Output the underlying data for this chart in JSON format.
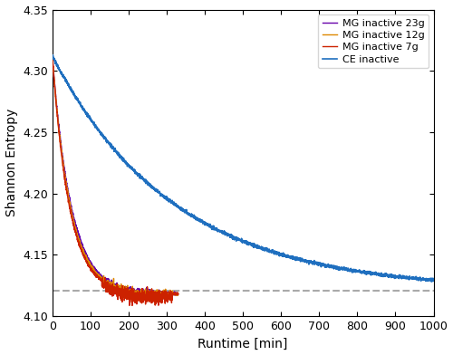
{
  "title": "",
  "xlabel": "Runtime [min]",
  "ylabel": "Shannon Entropy",
  "xlim": [
    0,
    1000
  ],
  "ylim": [
    4.1,
    4.35
  ],
  "yticks": [
    4.1,
    4.15,
    4.2,
    4.25,
    4.3,
    4.35
  ],
  "xticks": [
    0,
    100,
    200,
    300,
    400,
    500,
    600,
    700,
    800,
    900,
    1000
  ],
  "dashed_line_y": 4.121,
  "legend": [
    "CE inactive",
    "MG inactive 7g",
    "MG inactive 12g",
    "MG inactive 23g"
  ],
  "colors": {
    "CE": "#1f6fbf",
    "MG7": "#cc2200",
    "MG12": "#dd8800",
    "MG23": "#6600aa",
    "dashed": "#aaaaaa"
  },
  "start_val": 4.312,
  "ce_end": 4.121,
  "ce_tau": 320.0,
  "mg_end": 4.118,
  "mg_tau": 45.0,
  "mg_end_x": 330,
  "noise_ce": 0.0007,
  "noise_mg": 0.0006,
  "noise_mg_noisy": 0.0025
}
